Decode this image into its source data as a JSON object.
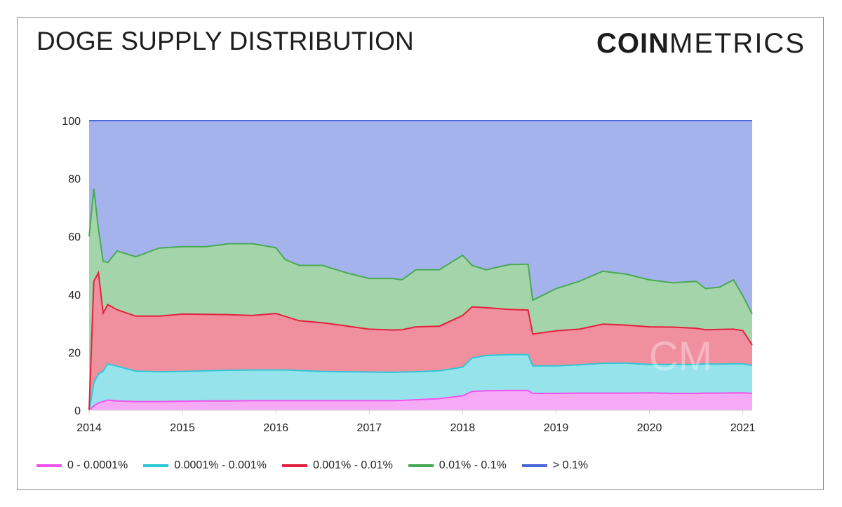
{
  "header": {
    "title": "DOGE SUPPLY DISTRIBUTION",
    "brand_bold": "COIN",
    "brand_light": "METRICS"
  },
  "watermark": "CM",
  "chart_data": {
    "type": "area",
    "stacked": true,
    "title": "DOGE SUPPLY DISTRIBUTION",
    "xlabel": "",
    "ylabel": "",
    "ylim": [
      0,
      100
    ],
    "yticks": [
      "0",
      "20",
      "40",
      "60",
      "80",
      "100"
    ],
    "xticks": [
      "2014",
      "2015",
      "2016",
      "2017",
      "2018",
      "2019",
      "2020",
      "2021"
    ],
    "grid": false,
    "legend_position": "bottom",
    "x": [
      2014.0,
      2014.05,
      2014.1,
      2014.15,
      2014.2,
      2014.3,
      2014.5,
      2014.75,
      2015.0,
      2015.25,
      2015.5,
      2015.75,
      2016.0,
      2016.1,
      2016.25,
      2016.5,
      2016.75,
      2017.0,
      2017.25,
      2017.35,
      2017.5,
      2017.75,
      2018.0,
      2018.1,
      2018.25,
      2018.5,
      2018.7,
      2018.75,
      2019.0,
      2019.25,
      2019.5,
      2019.75,
      2020.0,
      2020.25,
      2020.5,
      2020.6,
      2020.75,
      2020.9,
      2021.0,
      2021.1
    ],
    "series": [
      {
        "name": "0 - 0.0001%",
        "color": "#ee55ee",
        "values": [
          0,
          1.5,
          2.5,
          3,
          3.5,
          3.2,
          3.0,
          3.0,
          3.1,
          3.2,
          3.2,
          3.3,
          3.3,
          3.3,
          3.3,
          3.3,
          3.3,
          3.3,
          3.3,
          3.4,
          3.6,
          4.0,
          5.0,
          6.5,
          6.7,
          6.8,
          6.8,
          5.8,
          5.8,
          5.9,
          5.9,
          5.9,
          6.0,
          5.8,
          5.8,
          5.9,
          5.9,
          6.0,
          6.0,
          5.8
        ]
      },
      {
        "name": "0.0001% - 0.001%",
        "color": "#2ec7d8",
        "values": [
          0,
          8,
          10,
          10.5,
          12.5,
          12.0,
          10.5,
          10.3,
          10.3,
          10.4,
          10.6,
          10.6,
          10.6,
          10.6,
          10.4,
          10.1,
          10.0,
          9.9,
          9.8,
          9.8,
          9.7,
          9.6,
          9.9,
          11.5,
          12.2,
          12.4,
          12.4,
          9.5,
          9.5,
          9.8,
          10.3,
          10.4,
          9.8,
          10.0,
          10.0,
          10.1,
          10.0,
          10.0,
          10.0,
          9.7
        ]
      },
      {
        "name": "0.001% - 0.01%",
        "color": "#e2223e",
        "values": [
          0,
          35,
          35,
          20,
          20.5,
          19.5,
          19.0,
          19.2,
          19.8,
          19.5,
          19.2,
          18.8,
          19.5,
          18.5,
          17.2,
          16.8,
          15.8,
          14.8,
          14.6,
          14.6,
          15.5,
          15.4,
          17.8,
          17.7,
          16.5,
          15.6,
          15.4,
          11.0,
          12.1,
          12.3,
          13.5,
          13.1,
          13.0,
          12.9,
          12.5,
          11.8,
          12.0,
          12.0,
          11.5,
          7.0
        ]
      },
      {
        "name": "0.01% - 0.1%",
        "color": "#49aa55",
        "values": [
          60,
          32,
          15,
          18,
          14.5,
          20.3,
          20.5,
          23.5,
          23.3,
          23.4,
          24.5,
          24.8,
          22.7,
          19.6,
          19.1,
          19.8,
          18.4,
          17.5,
          17.8,
          17.2,
          19.7,
          19.5,
          20.8,
          14.3,
          13.1,
          15.5,
          15.8,
          11.7,
          14.6,
          16.5,
          18.3,
          17.6,
          16.2,
          15.3,
          16.2,
          14.2,
          14.6,
          17.0,
          12.0,
          10.7
        ]
      },
      {
        "name": "> 0.1%",
        "color": "#4a68d8",
        "values": [
          40,
          23.5,
          37.5,
          48.5,
          49,
          45,
          47,
          44,
          43.5,
          43.5,
          42.5,
          42.5,
          43.9,
          48,
          50,
          50,
          52.5,
          54.5,
          54.5,
          55,
          51.5,
          51.5,
          46.5,
          50,
          51.5,
          49.7,
          49.6,
          62,
          58,
          55.5,
          52,
          53,
          55,
          56,
          55.5,
          58,
          57.5,
          55,
          60.5,
          66.8
        ]
      }
    ]
  }
}
